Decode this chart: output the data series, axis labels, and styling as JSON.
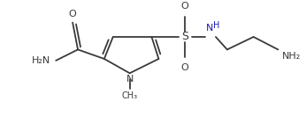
{
  "bg_color": "#ffffff",
  "line_color": "#3a3a3a",
  "blue_color": "#1a1ab0",
  "lw": 1.3,
  "fs": 8.0,
  "fs_s": 7.0,
  "figsize": [
    3.46,
    1.32
  ],
  "dpi": 100,
  "xlim": [
    0,
    346
  ],
  "ylim": [
    0,
    132
  ]
}
